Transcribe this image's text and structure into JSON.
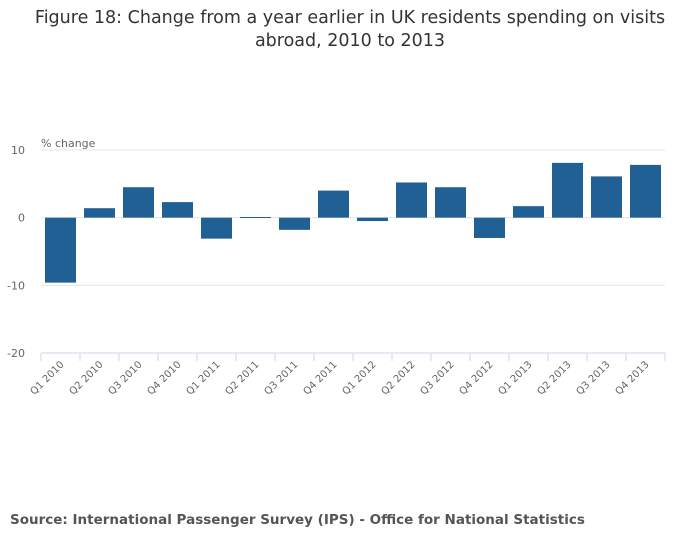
{
  "chart_data": {
    "type": "bar",
    "title": "Figure 18: Change from a year earlier in UK residents spending on visits abroad, 2010 to 2013",
    "ylabel": "% change",
    "xlabel": "",
    "categories": [
      "Q1 2010",
      "Q2 2010",
      "Q3 2010",
      "Q4 2010",
      "Q1 2011",
      "Q2 2011",
      "Q3 2011",
      "Q4 2011",
      "Q1 2012",
      "Q2 2012",
      "Q3 2012",
      "Q4 2012",
      "Q1 2013",
      "Q2 2013",
      "Q3 2013",
      "Q4 2013"
    ],
    "values": [
      -9.6,
      1.4,
      4.5,
      2.3,
      -3.1,
      0.1,
      -1.8,
      4.0,
      -0.5,
      5.2,
      4.5,
      -3.0,
      1.7,
      8.1,
      6.1,
      7.8
    ],
    "ylim": [
      -20,
      10
    ],
    "yticks": [
      10,
      0,
      -10,
      -20
    ],
    "grid": true,
    "bar_color": "#206095",
    "source": "Source: International Passenger Survey (IPS) - Office for National Statistics"
  }
}
